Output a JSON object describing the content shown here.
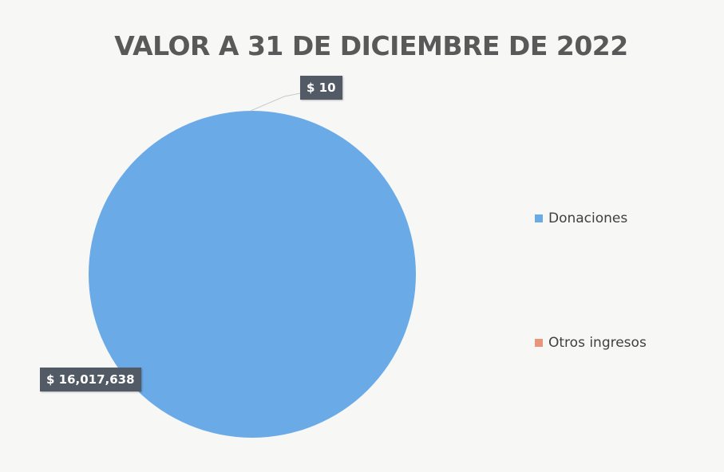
{
  "chart_data": {
    "type": "pie",
    "title": "VALOR A 31 DE DICIEMBRE DE 2022",
    "categories": [
      "Donaciones",
      "Otros ingresos"
    ],
    "values": [
      16017638,
      10
    ],
    "data_labels": [
      "$ 16,017,638",
      "$ 10"
    ],
    "colors": [
      "#6aaae6",
      "#e8957a"
    ],
    "legend_position": "right"
  }
}
